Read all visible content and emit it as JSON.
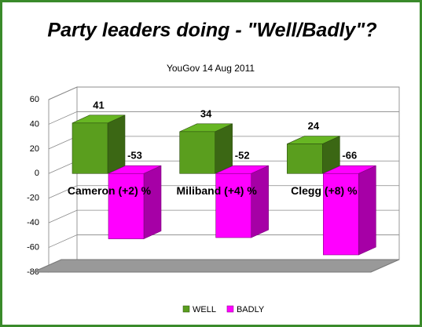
{
  "chart_data": {
    "type": "bar3d",
    "title": "Party leaders doing - \"Well/Badly\"?",
    "subtitle": "YouGov 14 Aug 2011",
    "categories": [
      "Cameron (+2) %",
      "Miliband (+4) %",
      "Clegg (+8) %"
    ],
    "series": [
      {
        "name": "WELL",
        "color": "#5a9e1e",
        "values": [
          41,
          34,
          24
        ]
      },
      {
        "name": "BADLY",
        "color": "#ff00ff",
        "values": [
          -53,
          -52,
          -66
        ]
      }
    ],
    "ylim": [
      -80,
      60
    ],
    "yticks": [
      -80,
      -60,
      -40,
      -20,
      0,
      20,
      40,
      60
    ],
    "grid": true,
    "legend": "bottom"
  }
}
